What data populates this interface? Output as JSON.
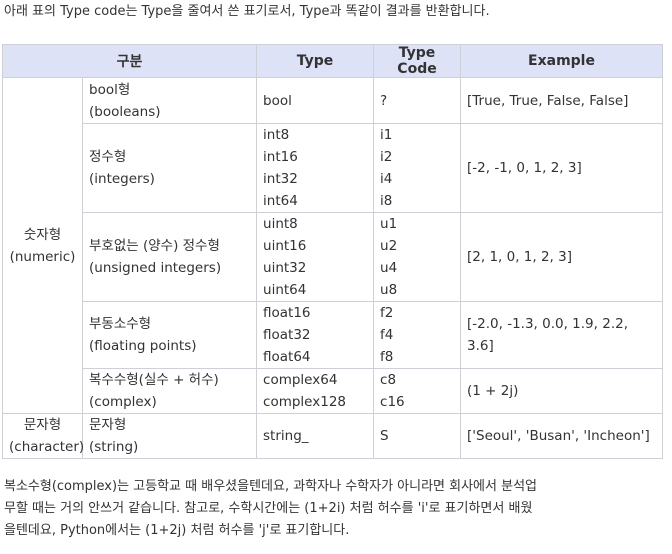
{
  "intro": "아래 표의 Type code는 Type을 줄여서 쓴 표기로서, Type과 똑같이 결과를 반환합니다.",
  "table": {
    "headers": [
      "구분",
      "Type",
      "Type Code",
      "Example"
    ],
    "groups": [
      {
        "category_lines": [
          "숫자형",
          "(numeric)"
        ],
        "rows": [
          {
            "sub_lines": [
              "bool형",
              "(booleans)"
            ],
            "types": [
              "bool"
            ],
            "codes": [
              "?"
            ],
            "example": "[True, True, False, False]"
          },
          {
            "sub_lines": [
              "정수형",
              "(integers)"
            ],
            "types": [
              "int8",
              "int16",
              "int32",
              "int64"
            ],
            "codes": [
              "i1",
              "i2",
              "i4",
              "i8"
            ],
            "example": "[-2, -1, 0, 1, 2, 3]"
          },
          {
            "sub_lines": [
              "부호없는 (양수) 정수형",
              "(unsigned integers)"
            ],
            "types": [
              "uint8",
              "uint16",
              "uint32",
              "uint64"
            ],
            "codes": [
              "u1",
              "u2",
              "u4",
              "u8"
            ],
            "example": "[2, 1, 0, 1, 2, 3]"
          },
          {
            "sub_lines": [
              "부동소수형",
              "(floating points)"
            ],
            "types": [
              "float16",
              "float32",
              "float64"
            ],
            "codes": [
              "f2",
              "f4",
              "f8"
            ],
            "example": "[-2.0, -1.3, 0.0, 1.9, 2.2, 3.6]"
          },
          {
            "sub_lines": [
              "복수수형(실수 + 허수)",
              "(complex)"
            ],
            "types": [
              "complex64",
              "complex128"
            ],
            "codes": [
              "c8",
              "c16"
            ],
            "example": "(1 + 2j)"
          }
        ]
      },
      {
        "category_lines": [
          "문자형",
          "(character)"
        ],
        "rows": [
          {
            "sub_lines": [
              "문자형",
              "(string)"
            ],
            "types": [
              "string_"
            ],
            "codes": [
              "S"
            ],
            "example": "['Seoul', 'Busan', 'Incheon']"
          }
        ]
      }
    ]
  },
  "outro_lines": [
    "복소수형(complex)는 고등학교 때 배우셨을텐데요, 과학자나 수학자가 아니라면 회사에서 분석업",
    "무할 때는 거의 안쓰거 같습니다. 참고로, 수학시간에는 (1+2i) 처럼 허수를 'i'로 표기하면서 배웠",
    "을텐데요, Python에서는 (1+2j) 처럼 허수를 'j'로 표기합니다."
  ]
}
